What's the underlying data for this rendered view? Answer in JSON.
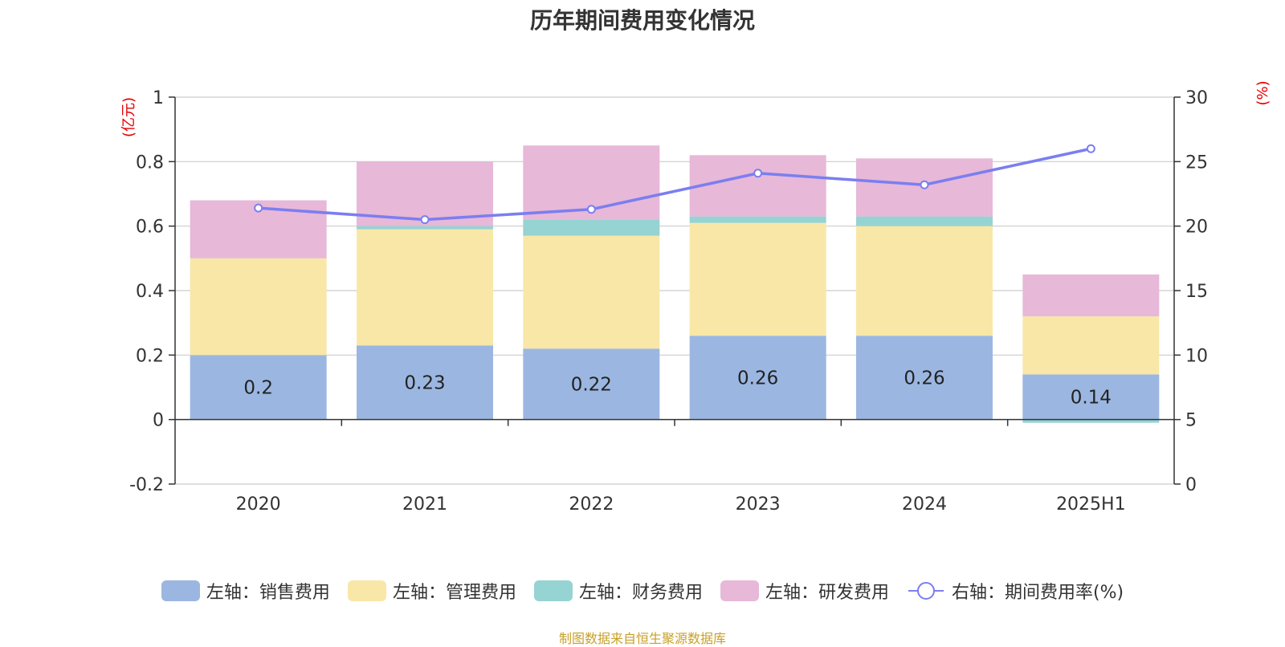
{
  "chart_data": {
    "type": "bar",
    "stacked": true,
    "title": "历年期间费用变化情况",
    "categories": [
      "2020",
      "2021",
      "2022",
      "2023",
      "2024",
      "2025H1"
    ],
    "left_axis": {
      "unit": "(亿元)",
      "ylim": [
        -0.2,
        1
      ],
      "ticks": [
        -0.2,
        0,
        0.2,
        0.4,
        0.6,
        0.8,
        1
      ],
      "tick_labels": [
        "-0.2",
        "0",
        "0.2",
        "0.4",
        "0.6",
        "0.8",
        "1"
      ]
    },
    "right_axis": {
      "unit": "(%)",
      "ylim": [
        0,
        30
      ],
      "ticks": [
        0,
        5,
        10,
        15,
        20,
        25,
        30
      ],
      "tick_labels": [
        "0",
        "5",
        "10",
        "15",
        "20",
        "25",
        "30"
      ]
    },
    "series": [
      {
        "name": "左轴：销售费用",
        "axis": "left",
        "kind": "bar",
        "color": "#9bb7e1",
        "values": [
          0.2,
          0.23,
          0.22,
          0.26,
          0.26,
          0.14
        ],
        "labels": [
          "0.2",
          "0.23",
          "0.22",
          "0.26",
          "0.26",
          "0.14"
        ]
      },
      {
        "name": "左轴：管理费用",
        "axis": "left",
        "kind": "bar",
        "color": "#f9e7a7",
        "values": [
          0.3,
          0.36,
          0.35,
          0.35,
          0.34,
          0.18
        ]
      },
      {
        "name": "左轴：财务费用",
        "axis": "left",
        "kind": "bar",
        "color": "#96d3d3",
        "values": [
          0.0,
          0.01,
          0.05,
          0.02,
          0.03,
          -0.01
        ]
      },
      {
        "name": "左轴：研发费用",
        "axis": "left",
        "kind": "bar",
        "color": "#e7b8d8",
        "values": [
          0.18,
          0.2,
          0.23,
          0.19,
          0.18,
          0.13
        ]
      },
      {
        "name": "右轴：期间费用率(%)",
        "axis": "right",
        "kind": "line",
        "color": "#7b7ef0",
        "values": [
          21.4,
          20.5,
          21.3,
          24.1,
          23.2,
          26.0
        ]
      }
    ],
    "grid": true,
    "legend_position": "bottom"
  },
  "footer": "制图数据来自恒生聚源数据库"
}
